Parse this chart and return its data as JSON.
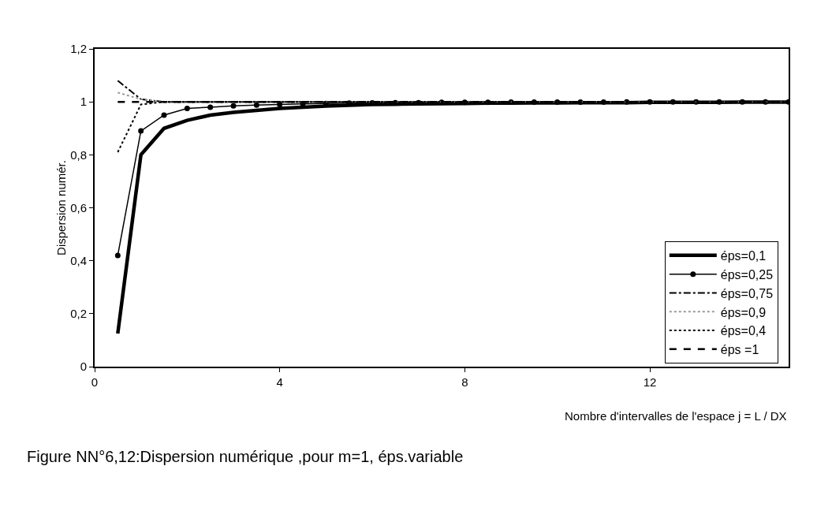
{
  "chart_data": {
    "type": "line",
    "xlabel": "Nombre d'intervalles de l'espace j = L / DX",
    "ylabel": "Dispersion numér.",
    "annotations": [
      "Figure NN°6,12:Dispersion numérique ,pour m=1, éps.variable"
    ],
    "x": [
      0.5,
      1,
      1.5,
      2,
      2.5,
      3,
      3.5,
      4,
      4.5,
      5,
      5.5,
      6,
      6.5,
      7,
      7.5,
      8,
      8.5,
      9,
      9.5,
      10,
      10.5,
      11,
      11.5,
      12,
      12.5,
      13,
      13.5,
      14,
      14.5,
      15
    ],
    "series": [
      {
        "name": "éps=0,1",
        "color": "#000000",
        "line_style": "solid",
        "marker": "none",
        "values": [
          0.125,
          0.8,
          0.9,
          0.93,
          0.95,
          0.96,
          0.968,
          0.975,
          0.98,
          0.984,
          0.987,
          0.99,
          0.991,
          0.992,
          0.993,
          0.994,
          0.995,
          0.995,
          0.996,
          0.996,
          0.997,
          0.997,
          0.997,
          0.998,
          0.998,
          0.998,
          0.998,
          0.999,
          0.999,
          0.999
        ]
      },
      {
        "name": "éps=0,25",
        "color": "#000000",
        "line_style": "solid",
        "marker": "circle",
        "values": [
          0.42,
          0.89,
          0.95,
          0.975,
          0.98,
          0.985,
          0.988,
          0.99,
          0.992,
          0.994,
          0.995,
          0.996,
          0.997,
          0.997,
          0.998,
          0.998,
          0.998,
          0.999,
          0.999,
          0.999,
          0.999,
          0.999,
          1,
          1,
          1,
          1,
          1,
          1,
          1,
          1
        ]
      },
      {
        "name": "éps=0,75",
        "color": "#000000",
        "line_style": "dashdot",
        "marker": "none",
        "values": [
          1.08,
          1.01,
          1.0,
          1,
          1,
          1,
          1,
          1,
          1,
          1,
          1,
          1,
          1,
          1,
          1,
          1,
          1,
          1,
          1,
          1,
          1,
          1,
          1,
          1,
          1,
          1,
          1,
          1,
          1,
          1
        ]
      },
      {
        "name": "éps=0,9",
        "color": "#999999",
        "line_style": "dotted",
        "marker": "none",
        "values": [
          1.035,
          1.01,
          1.0,
          1,
          1,
          1,
          1,
          1,
          1,
          1,
          1,
          1,
          1,
          1,
          1,
          1,
          1,
          1,
          1,
          1,
          1,
          1,
          1,
          1,
          1,
          1,
          1,
          1,
          1,
          1
        ]
      },
      {
        "name": "éps=0,4",
        "color": "#000000",
        "line_style": "dotted",
        "marker": "none",
        "values": [
          0.81,
          0.99,
          1.0,
          1,
          1,
          1,
          1,
          1,
          1,
          1,
          1,
          1,
          1,
          1,
          1,
          1,
          1,
          1,
          1,
          1,
          1,
          1,
          1,
          1,
          1,
          1,
          1,
          1,
          1,
          1
        ]
      },
      {
        "name": "éps =1",
        "color": "#000000",
        "line_style": "dashed",
        "marker": "none",
        "values": [
          1,
          1,
          1,
          1,
          1,
          1,
          1,
          1,
          1,
          1,
          1,
          1,
          1,
          1,
          1,
          1,
          1,
          1,
          1,
          1,
          1,
          1,
          1,
          1,
          1,
          1,
          1,
          1,
          1,
          1
        ]
      }
    ],
    "xlim": [
      0,
      15
    ],
    "xticks": [
      0,
      4,
      8,
      12
    ],
    "ylim": [
      0,
      1.2
    ],
    "yticks": [
      0,
      {
        "value": 0.2,
        "label": "0,2"
      },
      {
        "value": 0.4,
        "label": "0,4"
      },
      {
        "value": 0.6,
        "label": "0,6"
      },
      {
        "value": 0.8,
        "label": "0,8"
      },
      1,
      {
        "value": 1.2,
        "label": "1,2"
      }
    ],
    "legend": "bottom right"
  }
}
